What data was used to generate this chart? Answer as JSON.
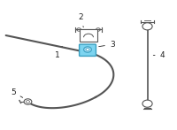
{
  "bg_color": "#ffffff",
  "highlight_color": "#7dd4f0",
  "highlight_border": "#3a9fc0",
  "line_color": "#555555",
  "label_color": "#222222",
  "fig_width": 2.0,
  "fig_height": 1.47,
  "dpi": 100,
  "label_fontsize": 6.5
}
